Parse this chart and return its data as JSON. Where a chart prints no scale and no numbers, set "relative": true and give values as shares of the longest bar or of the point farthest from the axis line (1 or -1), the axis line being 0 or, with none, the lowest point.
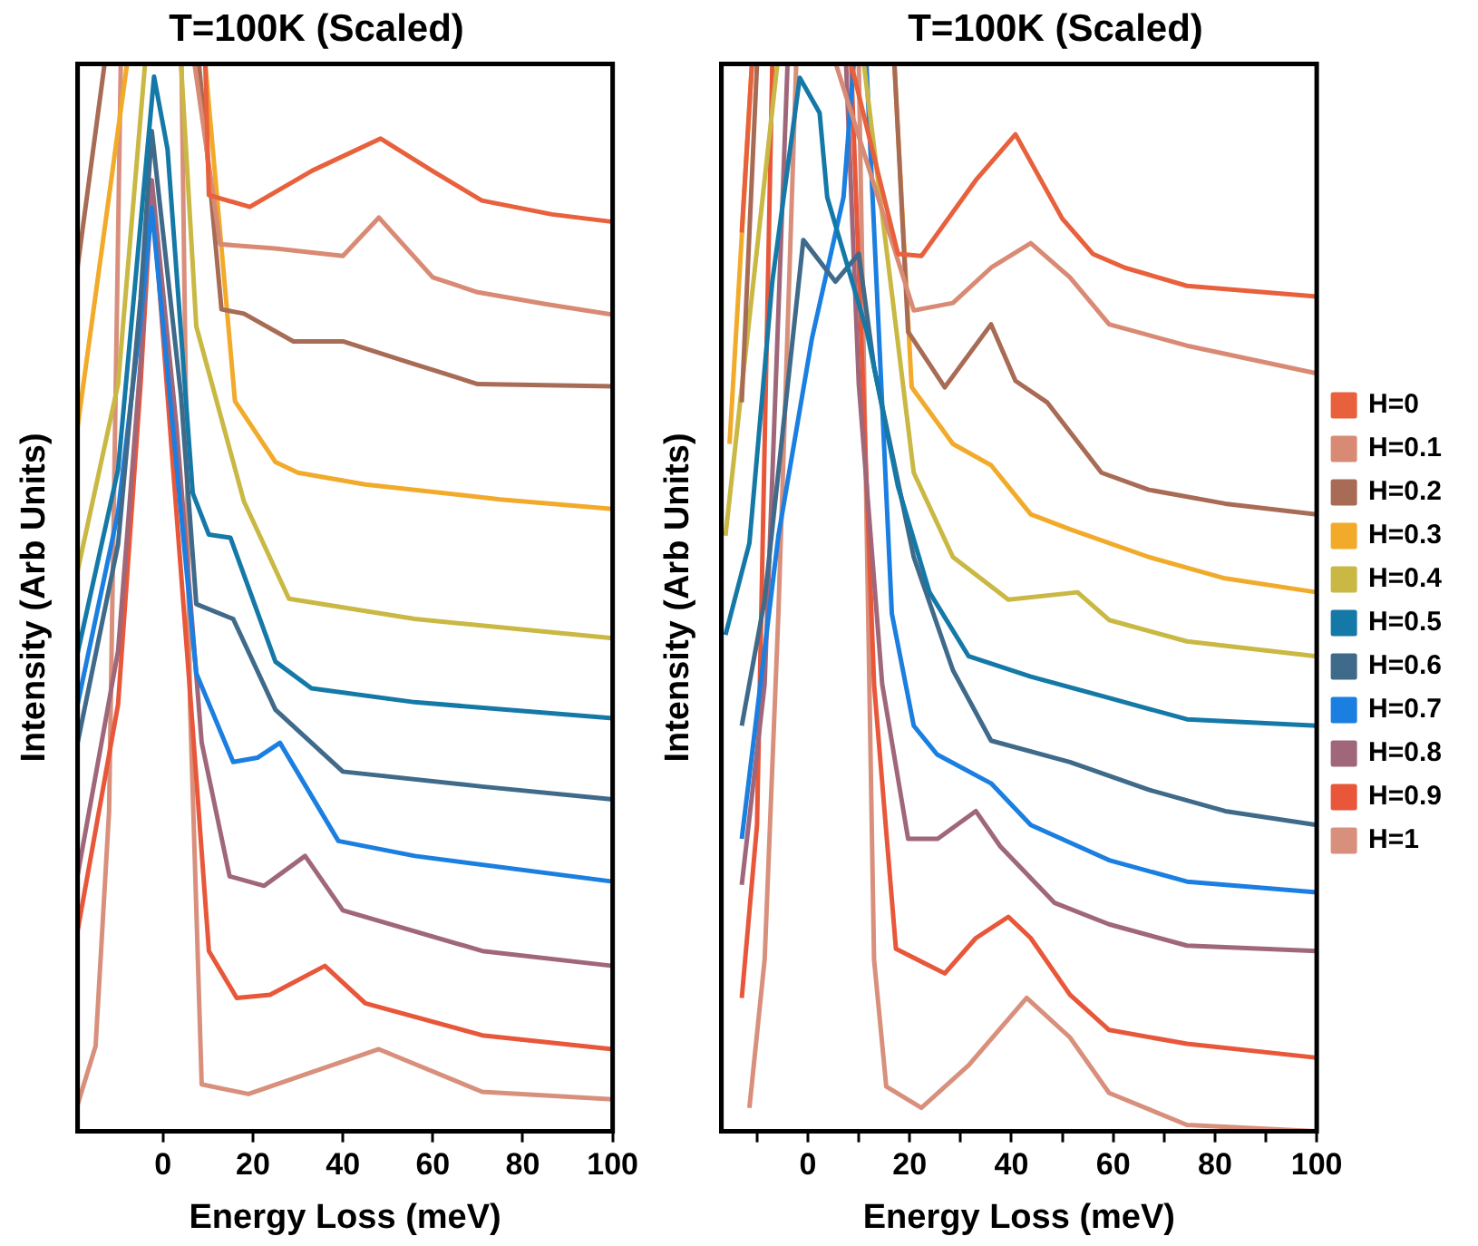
{
  "chart_data": [
    {
      "type": "line",
      "title": "T=100K (Scaled)",
      "xlabel": "Energy Loss (meV)",
      "ylabel": "Intensity (Arb Units)",
      "relative": true,
      "xlim": [
        -19,
        100
      ],
      "xticks": [
        0,
        20,
        40,
        60,
        80,
        100
      ],
      "series": [
        {
          "color": "#e8603c",
          "x": [
            9.4,
            10.2,
            19.3,
            33.2,
            48.4,
            59.8,
            70.9,
            86.5,
            100
          ],
          "values": [
            1,
            0.877,
            0.866,
            0.9,
            0.93,
            0.9,
            0.872,
            0.859,
            0.852
          ]
        },
        {
          "color": "#d98a74",
          "x": [
            7,
            12.7,
            25,
            40,
            48,
            60,
            70,
            85,
            100
          ],
          "values": [
            1,
            0.831,
            0.827,
            0.82,
            0.856,
            0.8,
            0.786,
            0.775,
            0.765
          ]
        },
        {
          "color": "#a86b55",
          "x": [
            -19,
            -13,
            -10,
            8,
            13,
            18,
            29,
            40,
            55,
            70,
            100
          ],
          "values": [
            0.81,
            1,
            null,
            1,
            0.77,
            0.766,
            0.74,
            0.74,
            0.72,
            0.7,
            0.698
          ]
        },
        {
          "color": "#f2aa2a",
          "x": [
            -19,
            -8,
            0,
            9.4,
            16,
            25,
            30,
            45,
            75,
            100
          ],
          "values": [
            0.66,
            1,
            null,
            1,
            0.684,
            0.627,
            0.617,
            0.606,
            0.592,
            0.583
          ]
        },
        {
          "color": "#c9b843",
          "x": [
            -19,
            -10,
            -4,
            0,
            4,
            7.4,
            18,
            28,
            56,
            100
          ],
          "values": [
            0.525,
            0.7,
            1,
            null,
            1,
            0.754,
            0.59,
            0.499,
            0.48,
            0.462
          ]
        },
        {
          "color": "#1579a8",
          "x": [
            -19,
            -10,
            -5,
            -2,
            1,
            6.6,
            10.2,
            15,
            25,
            33,
            56,
            100
          ],
          "values": [
            0.448,
            0.62,
            0.85,
            0.988,
            0.92,
            0.598,
            0.559,
            0.556,
            0.44,
            0.415,
            0.402,
            0.387
          ]
        },
        {
          "color": "#3f6a8a",
          "x": [
            -19,
            -10,
            -5,
            -2.5,
            4,
            7.4,
            15.6,
            25,
            40,
            71,
            100
          ],
          "values": [
            0.364,
            0.55,
            0.78,
            0.937,
            0.689,
            0.494,
            0.48,
            0.395,
            0.337,
            0.323,
            0.311
          ]
        },
        {
          "color": "#1a7fe0",
          "x": [
            -19,
            -10,
            -5,
            -2.5,
            3,
            7.4,
            15.6,
            21,
            26,
            39,
            56,
            100
          ],
          "values": [
            0.4,
            0.58,
            0.76,
            0.865,
            0.624,
            0.429,
            0.346,
            0.35,
            0.364,
            0.272,
            0.258,
            0.234
          ]
        },
        {
          "color": "#a0677a",
          "x": [
            -19,
            -10,
            -5,
            -2.5,
            3,
            8.6,
            14.8,
            22.5,
            31.6,
            40,
            71,
            100
          ],
          "values": [
            0.24,
            0.45,
            0.72,
            0.891,
            0.66,
            0.364,
            0.239,
            0.23,
            0.258,
            0.207,
            0.169,
            0.155
          ]
        },
        {
          "color": "#e8573a",
          "x": [
            -19,
            -10,
            -5,
            -2.5,
            5.7,
            10.2,
            16.4,
            23.8,
            36,
            45,
            71,
            100
          ],
          "values": [
            0.188,
            0.4,
            0.7,
            0.884,
            0.429,
            0.169,
            0.125,
            0.128,
            0.155,
            0.12,
            0.09,
            0.077
          ]
        },
        {
          "color": "#d8907c",
          "x": [
            -19,
            -15,
            -12,
            -9.4,
            -3,
            4.1,
            6,
            8.6,
            19,
            48,
            71,
            100
          ],
          "values": [
            0.025,
            0.08,
            0.3,
            1,
            null,
            1,
            0.4,
            0.044,
            0.035,
            0.077,
            0.037,
            0.03
          ]
        }
      ]
    },
    {
      "type": "line",
      "title": "T=100K (Scaled)",
      "xlabel": "Energy Loss (meV)",
      "ylabel": "Intensity (Arb Units)",
      "relative": true,
      "legend": "right",
      "xlim": [
        -17,
        100
      ],
      "xticks": [
        {
          "value": -10,
          "label": null
        },
        0,
        {
          "value": 10,
          "label": null
        },
        20,
        {
          "value": 30,
          "label": null
        },
        40,
        {
          "value": 50,
          "label": null
        },
        60,
        {
          "value": 70,
          "label": null
        },
        80,
        {
          "value": 90,
          "label": null
        },
        100
      ],
      "series": [
        {
          "name": "H=0",
          "color": "#e8603c",
          "x": [
            -13,
            -11,
            0,
            8.5,
            17.7,
            22.3,
            33,
            40.8,
            50,
            56,
            62.3,
            74.5,
            100
          ],
          "values": [
            0.842,
            1,
            null,
            1,
            0.822,
            0.82,
            0.891,
            0.934,
            0.855,
            0.822,
            0.809,
            0.792,
            0.782
          ]
        },
        {
          "name": "H=0.1",
          "color": "#d98a74",
          "x": [
            5.5,
            20.8,
            28.5,
            36,
            43.8,
            51.5,
            59.2,
            74.5,
            100
          ],
          "values": [
            1,
            0.769,
            0.776,
            0.809,
            0.832,
            0.8,
            0.756,
            0.736,
            0.71
          ]
        },
        {
          "name": "H=0.2",
          "color": "#a86b55",
          "x": [
            -13,
            -10,
            0,
            17,
            19.7,
            26.9,
            36,
            40.8,
            47,
            57.7,
            67,
            82,
            100
          ],
          "values": [
            0.683,
            1,
            null,
            1,
            0.749,
            0.697,
            0.756,
            0.703,
            0.683,
            0.617,
            0.601,
            0.588,
            0.578
          ]
        },
        {
          "name": "H=0.3",
          "color": "#f2aa2a",
          "x": [
            -15.4,
            -11,
            0,
            17,
            20.4,
            28.5,
            36,
            43.8,
            51.5,
            67,
            82,
            100
          ],
          "values": [
            0.644,
            1,
            null,
            1,
            0.697,
            0.644,
            0.624,
            0.578,
            0.564,
            0.538,
            0.518,
            0.505
          ]
        },
        {
          "name": "H=0.4",
          "color": "#c9b843",
          "x": [
            -16.2,
            -6,
            0,
            11,
            20.8,
            28.5,
            39.4,
            53,
            59.2,
            74.5,
            100
          ],
          "values": [
            0.558,
            1,
            null,
            1,
            0.617,
            0.538,
            0.498,
            0.505,
            0.479,
            0.459,
            0.445
          ]
        },
        {
          "name": "H=0.5",
          "color": "#1579a8",
          "x": [
            -16.2,
            -11.5,
            -7,
            -1.6,
            2.3,
            3.8,
            11.6,
            17.7,
            23.9,
            31.6,
            43.8,
            59.2,
            74.5,
            100
          ],
          "values": [
            0.465,
            0.551,
            0.796,
            0.987,
            0.954,
            0.875,
            0.749,
            0.604,
            0.505,
            0.445,
            0.426,
            0.406,
            0.386,
            0.38
          ]
        },
        {
          "name": "H=0.6",
          "color": "#3f6a8a",
          "x": [
            -13,
            -8.5,
            -0.9,
            5.4,
            10,
            13,
            20.8,
            28.5,
            36,
            51.5,
            67,
            82,
            100
          ],
          "values": [
            0.38,
            0.498,
            0.835,
            0.796,
            0.822,
            0.716,
            0.538,
            0.432,
            0.366,
            0.346,
            0.32,
            0.3,
            0.287
          ]
        },
        {
          "name": "H=0.7",
          "color": "#1a7fe0",
          "x": [
            -13,
            -5.8,
            0.8,
            7,
            9,
            10,
            11.5,
            16.5,
            20.8,
            25.4,
            36,
            43.8,
            59.2,
            74.5,
            100
          ],
          "values": [
            0.274,
            0.558,
            0.743,
            0.875,
            1,
            null,
            1,
            0.485,
            0.38,
            0.353,
            0.326,
            0.287,
            0.254,
            0.234,
            0.224
          ]
        },
        {
          "name": "H=0.8",
          "color": "#a0677a",
          "x": [
            -13,
            -8.5,
            -4,
            2,
            7.5,
            10,
            14.6,
            19.7,
            25.5,
            33,
            37.8,
            48.5,
            59.2,
            74.5,
            100
          ],
          "values": [
            0.231,
            0.419,
            1,
            null,
            1,
            0.7,
            0.419,
            0.274,
            0.274,
            0.3,
            0.267,
            0.214,
            0.194,
            0.174,
            0.169
          ]
        },
        {
          "name": "H=0.9",
          "color": "#e8573a",
          "x": [
            -13,
            -10,
            -7,
            2,
            8.5,
            13,
            17.3,
            26.9,
            33,
            39.4,
            43.8,
            51.5,
            59.2,
            74.5,
            100
          ],
          "values": [
            0.125,
            0.287,
            1,
            null,
            1,
            0.419,
            0.171,
            0.148,
            0.181,
            0.201,
            0.181,
            0.128,
            0.095,
            0.082,
            0.069
          ]
        },
        {
          "name": "H=1",
          "color": "#d8907c",
          "x": [
            -11.5,
            -8.5,
            -5.8,
            -2.3,
            4,
            10,
            13,
            15.4,
            22.3,
            31.6,
            43,
            51.5,
            59.2,
            74.5,
            100
          ],
          "values": [
            0.022,
            0.161,
            0.485,
            1,
            null,
            1,
            0.161,
            0.042,
            0.022,
            0.062,
            0.125,
            0.088,
            0.036,
            0.006,
            0
          ]
        }
      ]
    }
  ]
}
